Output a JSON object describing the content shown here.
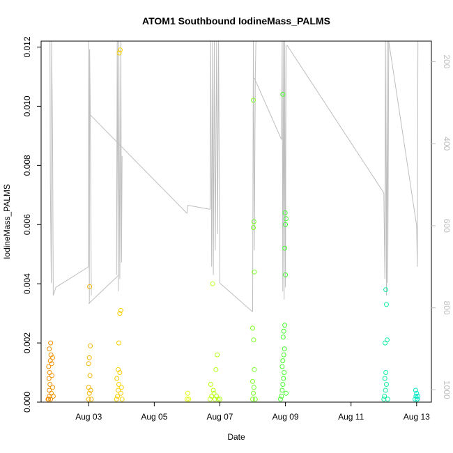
{
  "chart_data": {
    "type": "scatter",
    "title": "ATOM1 Southbound IodineMass_PALMS",
    "xlabel": "Date",
    "ylabel": "IodineMass_PALMS",
    "x_unit": "day of August 2016 (fractional)",
    "xlim": [
      1.55,
      13.45
    ],
    "ylim": [
      0,
      0.0122
    ],
    "x_ticks": [
      {
        "value": 3,
        "label": "Aug 03"
      },
      {
        "value": 5,
        "label": "Aug 05"
      },
      {
        "value": 7,
        "label": "Aug 07"
      },
      {
        "value": 9,
        "label": "Aug 09"
      },
      {
        "value": 11,
        "label": "Aug 11"
      },
      {
        "value": 13,
        "label": "Aug 13"
      }
    ],
    "y_ticks": [
      {
        "value": 0.0,
        "label": "0.000"
      },
      {
        "value": 0.002,
        "label": "0.002"
      },
      {
        "value": 0.004,
        "label": "0.004"
      },
      {
        "value": 0.006,
        "label": "0.006"
      },
      {
        "value": 0.008,
        "label": "0.008"
      },
      {
        "value": 0.01,
        "label": "0.010"
      },
      {
        "value": 0.012,
        "label": "0.012"
      }
    ],
    "y2_axis": {
      "reversed": true,
      "lim": [
        150,
        1030
      ],
      "ticks": [
        {
          "value": 200,
          "label": "200"
        },
        {
          "value": 400,
          "label": "400"
        },
        {
          "value": 600,
          "label": "600"
        },
        {
          "value": 800,
          "label": "800"
        },
        {
          "value": 1000,
          "label": "1000"
        }
      ],
      "color": "#bebebe"
    },
    "grid": false,
    "legend": "none",
    "colors": {
      "points_gradient": [
        "#f08c00",
        "#ffff00",
        "#33ff33",
        "#00e6c8"
      ],
      "profile_line": "#bebebe",
      "axis": "#000000"
    },
    "profile_series": [
      [
        1.82,
        150
      ],
      [
        1.83,
        490
      ],
      [
        1.86,
        740
      ],
      [
        1.87,
        150
      ],
      [
        1.9,
        400
      ],
      [
        1.92,
        770
      ],
      [
        2.0,
        750
      ],
      [
        3.0,
        700
      ],
      [
        3.0,
        150
      ],
      [
        3.02,
        790
      ],
      [
        3.03,
        170
      ],
      [
        3.05,
        330
      ],
      [
        3.08,
        770
      ],
      [
        3.85,
        720
      ],
      [
        3.87,
        150
      ],
      [
        3.9,
        760
      ],
      [
        3.92,
        150
      ],
      [
        3.95,
        730
      ],
      [
        3.98,
        150
      ],
      [
        4.0,
        690
      ],
      [
        4.02,
        430
      ],
      [
        6.0,
        570
      ],
      [
        6.02,
        550
      ],
      [
        6.7,
        560
      ],
      [
        6.72,
        150
      ],
      [
        6.75,
        700
      ],
      [
        6.78,
        150
      ],
      [
        6.8,
        720
      ],
      [
        6.83,
        150
      ],
      [
        6.86,
        660
      ],
      [
        6.9,
        150
      ],
      [
        6.93,
        620
      ],
      [
        6.96,
        150
      ],
      [
        7.0,
        740
      ],
      [
        8.0,
        810
      ],
      [
        8.02,
        150
      ],
      [
        8.05,
        660
      ],
      [
        8.08,
        240
      ],
      [
        8.1,
        150
      ],
      [
        8.88,
        390
      ],
      [
        8.9,
        150
      ],
      [
        8.92,
        760
      ],
      [
        8.94,
        150
      ],
      [
        8.96,
        780
      ],
      [
        8.98,
        150
      ],
      [
        9.0,
        750
      ],
      [
        9.02,
        160
      ],
      [
        12.0,
        520
      ],
      [
        12.03,
        730
      ],
      [
        12.05,
        150
      ],
      [
        12.08,
        770
      ],
      [
        12.1,
        150
      ],
      [
        12.12,
        740
      ],
      [
        12.15,
        150
      ],
      [
        13.0,
        600
      ],
      [
        13.02,
        700
      ],
      [
        13.04,
        150
      ]
    ],
    "segment_links": [
      [
        [
          2.0,
          750
        ],
        [
          3.0,
          700
        ]
      ],
      [
        [
          3.0,
          790
        ],
        [
          3.92,
          720
        ]
      ],
      [
        [
          3.05,
          330
        ],
        [
          6.0,
          570
        ]
      ],
      [
        [
          6.02,
          550
        ],
        [
          6.7,
          560
        ]
      ],
      [
        [
          7.0,
          740
        ],
        [
          8.0,
          810
        ]
      ],
      [
        [
          8.05,
          240
        ],
        [
          8.88,
          390
        ]
      ],
      [
        [
          9.05,
          160
        ],
        [
          12.0,
          520
        ]
      ],
      [
        [
          12.15,
          150
        ],
        [
          13.0,
          600
        ]
      ]
    ],
    "points": [
      {
        "x": 1.78,
        "y": 0.0001
      },
      {
        "x": 1.8,
        "y": 0.0002
      },
      {
        "x": 1.8,
        "y": 0.0004
      },
      {
        "x": 1.82,
        "y": 0.0006
      },
      {
        "x": 1.79,
        "y": 0.0008
      },
      {
        "x": 1.81,
        "y": 0.001
      },
      {
        "x": 1.78,
        "y": 0.0012
      },
      {
        "x": 1.83,
        "y": 0.0014
      },
      {
        "x": 1.85,
        "y": 0.0016
      },
      {
        "x": 1.8,
        "y": 0.0018
      },
      {
        "x": 1.84,
        "y": 0.002
      },
      {
        "x": 1.86,
        "y": 0.0003
      },
      {
        "x": 1.88,
        "y": 0.0009
      },
      {
        "x": 1.9,
        "y": 0.0005
      },
      {
        "x": 1.87,
        "y": 0.0013
      },
      {
        "x": 1.9,
        "y": 0.0015
      },
      {
        "x": 1.76,
        "y": 0.0001
      },
      {
        "x": 1.84,
        "y": 0.0001
      },
      {
        "x": 1.92,
        "y": 0.0002
      },
      {
        "x": 3.0,
        "y": 0.0001
      },
      {
        "x": 3.02,
        "y": 0.0003
      },
      {
        "x": 3.0,
        "y": 0.0005
      },
      {
        "x": 3.04,
        "y": 0.0009
      },
      {
        "x": 3.0,
        "y": 0.0013
      },
      {
        "x": 3.02,
        "y": 0.0015
      },
      {
        "x": 3.05,
        "y": 0.0019
      },
      {
        "x": 3.03,
        "y": 0.0039
      },
      {
        "x": 3.08,
        "y": 0.0001
      },
      {
        "x": 3.06,
        "y": 0.0004
      },
      {
        "x": 3.85,
        "y": 0.0001
      },
      {
        "x": 3.88,
        "y": 0.0002
      },
      {
        "x": 3.9,
        "y": 0.0004
      },
      {
        "x": 3.92,
        "y": 0.0006
      },
      {
        "x": 3.86,
        "y": 0.0008
      },
      {
        "x": 3.95,
        "y": 0.001
      },
      {
        "x": 3.98,
        "y": 0.0003
      },
      {
        "x": 4.0,
        "y": 0.0005
      },
      {
        "x": 3.92,
        "y": 0.002
      },
      {
        "x": 3.95,
        "y": 0.003
      },
      {
        "x": 3.98,
        "y": 0.0031
      },
      {
        "x": 3.93,
        "y": 0.0118
      },
      {
        "x": 3.96,
        "y": 0.0119
      },
      {
        "x": 3.9,
        "y": 0.0011
      },
      {
        "x": 4.02,
        "y": 0.0001
      },
      {
        "x": 6.0,
        "y": 0.0001
      },
      {
        "x": 6.02,
        "y": 0.0003
      },
      {
        "x": 6.05,
        "y": 0.0001
      },
      {
        "x": 6.7,
        "y": 0.0001
      },
      {
        "x": 6.75,
        "y": 0.0002
      },
      {
        "x": 6.8,
        "y": 0.0004
      },
      {
        "x": 6.85,
        "y": 0.0001
      },
      {
        "x": 6.9,
        "y": 0.0002
      },
      {
        "x": 6.72,
        "y": 0.0006
      },
      {
        "x": 6.95,
        "y": 0.0001
      },
      {
        "x": 6.88,
        "y": 0.0011
      },
      {
        "x": 6.92,
        "y": 0.0016
      },
      {
        "x": 6.78,
        "y": 0.004
      },
      {
        "x": 7.0,
        "y": 0.0001
      },
      {
        "x": 6.82,
        "y": 0.0003
      },
      {
        "x": 8.0,
        "y": 0.0001
      },
      {
        "x": 8.02,
        "y": 0.0003
      },
      {
        "x": 8.04,
        "y": 0.0005
      },
      {
        "x": 8.0,
        "y": 0.0007
      },
      {
        "x": 8.05,
        "y": 0.0011
      },
      {
        "x": 8.03,
        "y": 0.0021
      },
      {
        "x": 8.0,
        "y": 0.0025
      },
      {
        "x": 8.05,
        "y": 0.0044
      },
      {
        "x": 8.02,
        "y": 0.0059
      },
      {
        "x": 8.04,
        "y": 0.0061
      },
      {
        "x": 8.02,
        "y": 0.0102
      },
      {
        "x": 8.08,
        "y": 0.0001
      },
      {
        "x": 8.85,
        "y": 0.0001
      },
      {
        "x": 8.88,
        "y": 0.0002
      },
      {
        "x": 8.9,
        "y": 0.0004
      },
      {
        "x": 8.92,
        "y": 0.0006
      },
      {
        "x": 8.94,
        "y": 0.0008
      },
      {
        "x": 8.96,
        "y": 0.001
      },
      {
        "x": 8.9,
        "y": 0.0012
      },
      {
        "x": 8.92,
        "y": 0.0014
      },
      {
        "x": 8.95,
        "y": 0.0016
      },
      {
        "x": 8.97,
        "y": 0.0018
      },
      {
        "x": 8.93,
        "y": 0.0022
      },
      {
        "x": 8.95,
        "y": 0.0024
      },
      {
        "x": 8.98,
        "y": 0.0026
      },
      {
        "x": 9.0,
        "y": 0.0043
      },
      {
        "x": 8.98,
        "y": 0.0052
      },
      {
        "x": 9.0,
        "y": 0.006
      },
      {
        "x": 9.02,
        "y": 0.0062
      },
      {
        "x": 8.99,
        "y": 0.0064
      },
      {
        "x": 8.92,
        "y": 0.0104
      },
      {
        "x": 9.02,
        "y": 0.0003
      },
      {
        "x": 12.0,
        "y": 0.0001
      },
      {
        "x": 12.02,
        "y": 0.0002
      },
      {
        "x": 12.05,
        "y": 0.0004
      },
      {
        "x": 12.08,
        "y": 0.0006
      },
      {
        "x": 12.03,
        "y": 0.0008
      },
      {
        "x": 12.06,
        "y": 0.001
      },
      {
        "x": 12.04,
        "y": 0.002
      },
      {
        "x": 12.1,
        "y": 0.0021
      },
      {
        "x": 12.08,
        "y": 0.0033
      },
      {
        "x": 12.06,
        "y": 0.0038
      },
      {
        "x": 12.12,
        "y": 0.0001
      },
      {
        "x": 12.95,
        "y": 0.0001
      },
      {
        "x": 12.98,
        "y": 0.0002
      },
      {
        "x": 13.0,
        "y": 0.0003
      },
      {
        "x": 13.02,
        "y": 0.0001
      },
      {
        "x": 13.04,
        "y": 0.0002
      },
      {
        "x": 12.97,
        "y": 0.0004
      },
      {
        "x": 13.01,
        "y": 0.0001
      }
    ]
  }
}
